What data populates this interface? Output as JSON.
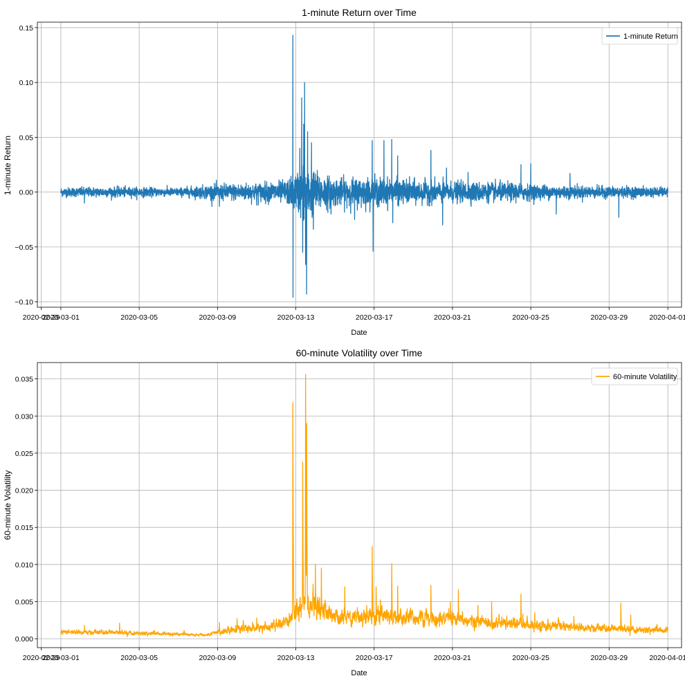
{
  "chart_data": [
    {
      "type": "line",
      "title": "1-minute Return over Time",
      "xlabel": "Date",
      "ylabel": "1-minute Return",
      "xlim": [
        -1.2,
        31.7
      ],
      "ylim": [
        -0.105,
        0.155
      ],
      "grid": true,
      "legend_position": "top-right",
      "x_ticks": [
        {
          "label": "2020-02-29",
          "x": -1
        },
        {
          "label": "2020-03-01",
          "x": 0
        },
        {
          "label": "2020-03-05",
          "x": 4
        },
        {
          "label": "2020-03-09",
          "x": 8
        },
        {
          "label": "2020-03-13",
          "x": 12
        },
        {
          "label": "2020-03-17",
          "x": 16
        },
        {
          "label": "2020-03-21",
          "x": 20
        },
        {
          "label": "2020-03-25",
          "x": 24
        },
        {
          "label": "2020-03-29",
          "x": 28
        },
        {
          "label": "2020-04-01",
          "x": 31
        }
      ],
      "y_ticks": [
        {
          "label": "−0.10",
          "value": -0.1
        },
        {
          "label": "−0.05",
          "value": -0.05
        },
        {
          "label": "0.00",
          "value": 0.0
        },
        {
          "label": "0.05",
          "value": 0.05
        },
        {
          "label": "0.10",
          "value": 0.1
        },
        {
          "label": "0.15",
          "value": 0.15
        }
      ],
      "series": [
        {
          "name": "1-minute Return",
          "color": "#1f77b4",
          "noise_amplitude_profile": [
            {
              "x": 0,
              "amp": 0.002
            },
            {
              "x": 3,
              "amp": 0.0022
            },
            {
              "x": 6,
              "amp": 0.0018
            },
            {
              "x": 8,
              "amp": 0.0035
            },
            {
              "x": 10,
              "amp": 0.004
            },
            {
              "x": 11.5,
              "amp": 0.005
            },
            {
              "x": 12,
              "amp": 0.008
            },
            {
              "x": 12.5,
              "amp": 0.013
            },
            {
              "x": 13,
              "amp": 0.009
            },
            {
              "x": 14,
              "amp": 0.006
            },
            {
              "x": 16,
              "amp": 0.0065
            },
            {
              "x": 17,
              "amp": 0.0055
            },
            {
              "x": 20,
              "amp": 0.0045
            },
            {
              "x": 23,
              "amp": 0.004
            },
            {
              "x": 25,
              "amp": 0.003
            },
            {
              "x": 28,
              "amp": 0.0025
            },
            {
              "x": 31,
              "amp": 0.002
            }
          ],
          "spikes": [
            {
              "x": 11.85,
              "value": 0.143
            },
            {
              "x": 11.86,
              "value": -0.096
            },
            {
              "x": 12.3,
              "value": 0.086
            },
            {
              "x": 12.35,
              "value": -0.055
            },
            {
              "x": 12.45,
              "value": 0.1
            },
            {
              "x": 12.5,
              "value": -0.066
            },
            {
              "x": 12.55,
              "value": -0.093
            },
            {
              "x": 12.4,
              "value": 0.062
            },
            {
              "x": 12.2,
              "value": 0.04
            },
            {
              "x": 12.9,
              "value": -0.034
            },
            {
              "x": 12.6,
              "value": 0.055
            },
            {
              "x": 12.8,
              "value": 0.045
            },
            {
              "x": 13.8,
              "value": -0.02
            },
            {
              "x": 15.0,
              "value": -0.025
            },
            {
              "x": 15.9,
              "value": 0.047
            },
            {
              "x": 15.95,
              "value": -0.054
            },
            {
              "x": 16.9,
              "value": 0.048
            },
            {
              "x": 16.95,
              "value": -0.028
            },
            {
              "x": 16.5,
              "value": 0.047
            },
            {
              "x": 17.2,
              "value": 0.033
            },
            {
              "x": 18.9,
              "value": 0.038
            },
            {
              "x": 19.5,
              "value": -0.03
            },
            {
              "x": 19.7,
              "value": 0.022
            },
            {
              "x": 20.8,
              "value": 0.018
            },
            {
              "x": 23.5,
              "value": 0.025
            },
            {
              "x": 24.0,
              "value": 0.026
            },
            {
              "x": 25.3,
              "value": -0.02
            },
            {
              "x": 26.0,
              "value": 0.017
            },
            {
              "x": 28.5,
              "value": -0.023
            },
            {
              "x": 1.2,
              "value": -0.01
            },
            {
              "x": 8.1,
              "value": -0.013
            },
            {
              "x": 10.0,
              "value": -0.012
            }
          ]
        }
      ]
    },
    {
      "type": "line",
      "title": "60-minute Volatility over Time",
      "xlabel": "Date",
      "ylabel": "60-minute Volatility",
      "xlim": [
        -1.2,
        31.7
      ],
      "ylim": [
        -0.0012,
        0.0372
      ],
      "grid": true,
      "legend_position": "top-right",
      "x_ticks": [
        {
          "label": "2020-02-29",
          "x": -1
        },
        {
          "label": "2020-03-01",
          "x": 0
        },
        {
          "label": "2020-03-05",
          "x": 4
        },
        {
          "label": "2020-03-09",
          "x": 8
        },
        {
          "label": "2020-03-13",
          "x": 12
        },
        {
          "label": "2020-03-17",
          "x": 16
        },
        {
          "label": "2020-03-21",
          "x": 20
        },
        {
          "label": "2020-03-25",
          "x": 24
        },
        {
          "label": "2020-03-29",
          "x": 28
        },
        {
          "label": "2020-04-01",
          "x": 31
        }
      ],
      "y_ticks": [
        {
          "label": "0.000",
          "value": 0.0
        },
        {
          "label": "0.005",
          "value": 0.005
        },
        {
          "label": "0.010",
          "value": 0.01
        },
        {
          "label": "0.015",
          "value": 0.015
        },
        {
          "label": "0.020",
          "value": 0.02
        },
        {
          "label": "0.025",
          "value": 0.025
        },
        {
          "label": "0.030",
          "value": 0.03
        },
        {
          "label": "0.035",
          "value": 0.035
        }
      ],
      "series": [
        {
          "name": "60-minute Volatility",
          "color": "#ffa500",
          "baseline_profile": [
            {
              "x": 0,
              "value": 0.0009
            },
            {
              "x": 3,
              "value": 0.0008
            },
            {
              "x": 6,
              "value": 0.0006
            },
            {
              "x": 7.5,
              "value": 0.0005
            },
            {
              "x": 8.5,
              "value": 0.0012
            },
            {
              "x": 10,
              "value": 0.0014
            },
            {
              "x": 11.5,
              "value": 0.002
            },
            {
              "x": 12,
              "value": 0.004
            },
            {
              "x": 13,
              "value": 0.0045
            },
            {
              "x": 14,
              "value": 0.0028
            },
            {
              "x": 16,
              "value": 0.0032
            },
            {
              "x": 17,
              "value": 0.003
            },
            {
              "x": 20,
              "value": 0.0025
            },
            {
              "x": 23,
              "value": 0.002
            },
            {
              "x": 25,
              "value": 0.0017
            },
            {
              "x": 28,
              "value": 0.0013
            },
            {
              "x": 31,
              "value": 0.0011
            }
          ],
          "spikes": [
            {
              "x": 11.85,
              "value": 0.0318
            },
            {
              "x": 12.35,
              "value": 0.0238
            },
            {
              "x": 12.5,
              "value": 0.0356
            },
            {
              "x": 12.55,
              "value": 0.029
            },
            {
              "x": 13.0,
              "value": 0.01
            },
            {
              "x": 13.3,
              "value": 0.0095
            },
            {
              "x": 14.5,
              "value": 0.007
            },
            {
              "x": 15.9,
              "value": 0.0124
            },
            {
              "x": 16.1,
              "value": 0.007
            },
            {
              "x": 16.9,
              "value": 0.0101
            },
            {
              "x": 17.2,
              "value": 0.0071
            },
            {
              "x": 18.9,
              "value": 0.0072
            },
            {
              "x": 19.9,
              "value": 0.005
            },
            {
              "x": 20.3,
              "value": 0.0066
            },
            {
              "x": 21.3,
              "value": 0.0045
            },
            {
              "x": 22.0,
              "value": 0.005
            },
            {
              "x": 23.5,
              "value": 0.006
            },
            {
              "x": 24.2,
              "value": 0.0035
            },
            {
              "x": 26.2,
              "value": 0.003
            },
            {
              "x": 28.6,
              "value": 0.0048
            },
            {
              "x": 29.1,
              "value": 0.0032
            },
            {
              "x": 1.2,
              "value": 0.0018
            },
            {
              "x": 3.0,
              "value": 0.0021
            },
            {
              "x": 8.1,
              "value": 0.0022
            },
            {
              "x": 9.0,
              "value": 0.0027
            },
            {
              "x": 10.0,
              "value": 0.0028
            }
          ]
        }
      ]
    }
  ]
}
